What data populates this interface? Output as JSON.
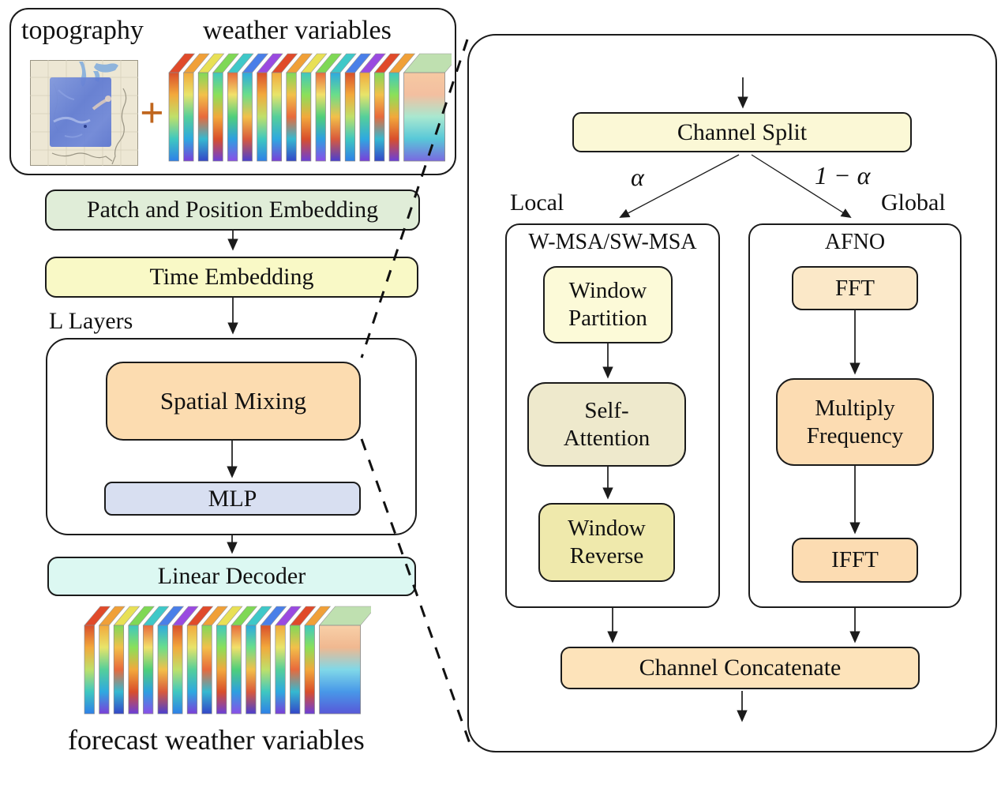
{
  "left": {
    "input_box": {
      "topography_label": "topography",
      "plus": "+",
      "weather_label": "weather variables"
    },
    "patch_embedding": "Patch and Position Embedding",
    "time_embedding": "Time Embedding",
    "layers_label": "L Layers",
    "spatial_mixing": "Spatial Mixing",
    "mlp": "MLP",
    "linear_decoder": "Linear Decoder",
    "forecast_label": "forecast weather variables"
  },
  "right": {
    "channel_split": "Channel Split",
    "alpha_label": "α",
    "one_minus_alpha_label": "1 − α",
    "local_label": "Local",
    "global_label": "Global",
    "local_branch": {
      "heading": "W-MSA/SW-MSA",
      "window_partition_line1": "Window",
      "window_partition_line2": "Partition",
      "self_attention_line1": "Self-",
      "self_attention_line2": "Attention",
      "window_reverse_line1": "Window",
      "window_reverse_line2": "Reverse"
    },
    "global_branch": {
      "heading": "AFNO",
      "fft": "FFT",
      "multiply_line1": "Multiply",
      "multiply_line2": "Frequency",
      "ifft": "IFFT"
    },
    "channel_concatenate": "Channel Concatenate"
  },
  "colors": {
    "patch_embedding": "#e0edd8",
    "time_embedding": "#f9f9c6",
    "spatial_mixing": "#fcdcb0",
    "mlp": "#d8dff1",
    "linear_decoder": "#dcf8f2",
    "channel_split": "#fbf8d6",
    "window_partition": "#fcfad8",
    "self_attention": "#eee9cc",
    "window_reverse": "#efe9ac",
    "fft": "#fbe8c8",
    "multiply_frequency": "#fcdcb2",
    "ifft": "#fcdcb2",
    "channel_concatenate": "#fde3ba",
    "plus_sign": "#c0661e",
    "line": "#1b1b1b"
  }
}
